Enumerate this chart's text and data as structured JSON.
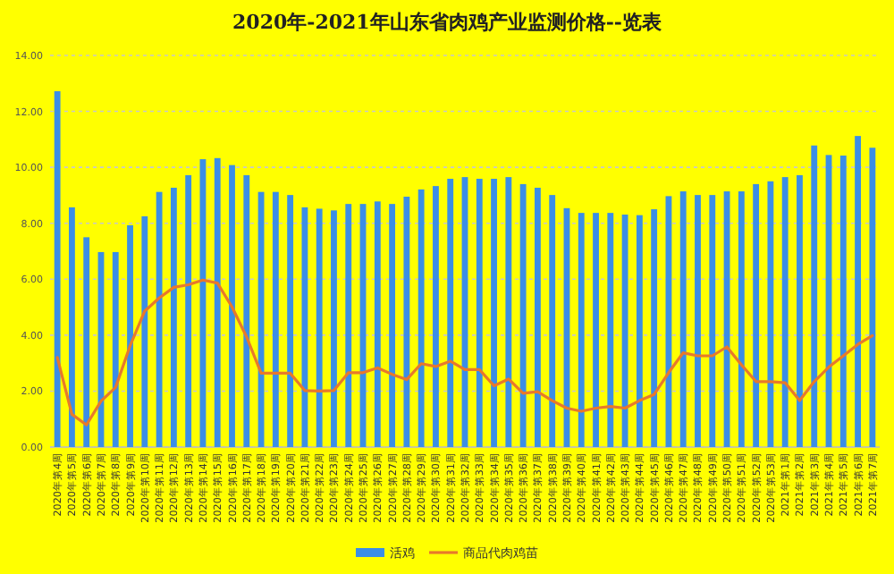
{
  "chart_data": {
    "type": "bar",
    "title": "2020年-2021年山东省肉鸡产业监测价格--览表",
    "categories": [
      "2020年第4周",
      "2020年第5周",
      "2020年第6周",
      "2020年第7周",
      "2020年第8周",
      "2020年第9周",
      "2020年第10周",
      "2020年第11周",
      "2020年第12周",
      "2020年第13周",
      "2020年第14周",
      "2020年第15周",
      "2020年第16周",
      "2020年第17周",
      "2020年第18周",
      "2020年第19周",
      "2020年第20周",
      "2020年第21周",
      "2020年第22周",
      "2020年第23周",
      "2020年第24周",
      "2020年第25周",
      "2020年第26周",
      "2020年第27周",
      "2020年第28周",
      "2020年第29周",
      "2020年第30周",
      "2020年第31周",
      "2020年第32周",
      "2020年第33周",
      "2020年第34周",
      "2020年第35周",
      "2020年第36周",
      "2020年第37周",
      "2020年第38周",
      "2020年第39周",
      "2020年第40周",
      "2020年第41周",
      "2020年第42周",
      "2020年第43周",
      "2020年第44周",
      "2020年第45周",
      "2020年第46周",
      "2020年第47周",
      "2020年第48周",
      "2020年第49周",
      "2020年第50周",
      "2020年第51周",
      "2020年第52周",
      "2020年第53周",
      "2021年第1周",
      "2021年第2周",
      "2021年第3周",
      "2021年第4周",
      "2021年第5周",
      "2021年第6周",
      "2021年第7周"
    ],
    "series": [
      {
        "name": "活鸡",
        "color": "#3b8ee6",
        "values": [
          12.72,
          8.57,
          7.5,
          6.97,
          6.97,
          7.93,
          8.25,
          9.12,
          9.27,
          9.72,
          10.29,
          10.33,
          10.08,
          9.72,
          9.12,
          9.12,
          9.01,
          8.57,
          8.52,
          8.46,
          8.69,
          8.69,
          8.78,
          8.69,
          8.95,
          9.21,
          9.33,
          9.59,
          9.65,
          9.59,
          9.59,
          9.65,
          9.4,
          9.27,
          9.01,
          8.54,
          8.37,
          8.37,
          8.37,
          8.31,
          8.29,
          8.5,
          8.97,
          9.14,
          9.01,
          9.01,
          9.14,
          9.14,
          9.4,
          9.5,
          9.65,
          9.72,
          10.78,
          10.44,
          10.42,
          11.12,
          10.7
        ]
      },
      {
        "name": "商品代肉鸡苗",
        "type": "line",
        "color": "#e8792b",
        "values": [
          3.2,
          1.17,
          0.79,
          1.64,
          2.13,
          3.62,
          4.86,
          5.33,
          5.71,
          5.8,
          5.97,
          5.86,
          5.01,
          3.94,
          2.64,
          2.64,
          2.64,
          2.02,
          2.0,
          2.02,
          2.66,
          2.66,
          2.83,
          2.6,
          2.41,
          2.98,
          2.88,
          3.07,
          2.77,
          2.77,
          2.19,
          2.43,
          1.92,
          1.98,
          1.66,
          1.39,
          1.28,
          1.39,
          1.45,
          1.39,
          1.66,
          1.88,
          2.66,
          3.37,
          3.26,
          3.26,
          3.58,
          2.94,
          2.34,
          2.34,
          2.3,
          1.66,
          2.34,
          2.86,
          3.26,
          3.67,
          3.98
        ]
      }
    ],
    "ylim": [
      0,
      14
    ],
    "yticks": [
      {
        "value": 0,
        "label": "0.00"
      },
      {
        "value": 2,
        "label": "2.00"
      },
      {
        "value": 4,
        "label": "4.00"
      },
      {
        "value": 6,
        "label": "6.00"
      },
      {
        "value": 8,
        "label": "8.00"
      },
      {
        "value": 10,
        "label": "10.00"
      },
      {
        "value": 12,
        "label": "12.00"
      },
      {
        "value": 14,
        "label": "14.00"
      }
    ],
    "grid": "y",
    "legend": "bottom",
    "marker": "none",
    "line_style": "solid"
  }
}
